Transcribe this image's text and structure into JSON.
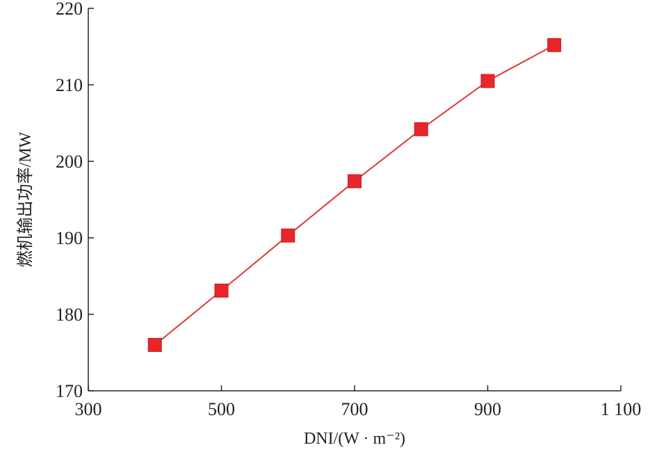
{
  "chart_data": {
    "type": "line",
    "title": "",
    "xlabel": "DNI/(W · m⁻²)",
    "ylabel": "燃机输出功率/MW",
    "xlim": [
      300,
      1100
    ],
    "ylim": [
      170,
      220
    ],
    "xticks": [
      300,
      500,
      700,
      900,
      1100
    ],
    "xtick_labels": [
      "300",
      "500",
      "700",
      "900",
      "1 100"
    ],
    "yticks": [
      170,
      180,
      190,
      200,
      210,
      220
    ],
    "ytick_labels": [
      "170",
      "180",
      "190",
      "200",
      "210",
      "220"
    ],
    "grid": false,
    "series": [
      {
        "color": "#e8262a",
        "line_color": "#d93a3a",
        "marker": "square",
        "x": [
          400,
          500,
          600,
          700,
          800,
          900,
          1000
        ],
        "y": [
          176.0,
          183.1,
          190.3,
          197.4,
          204.2,
          210.5,
          215.2
        ]
      }
    ]
  }
}
